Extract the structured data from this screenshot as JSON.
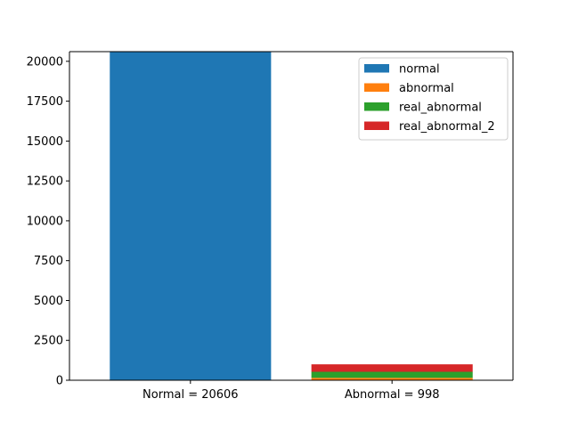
{
  "chart_data": {
    "type": "bar",
    "stacked": true,
    "categories": [
      "Normal = 20606",
      "Abnormal = 998"
    ],
    "series": [
      {
        "name": "normal",
        "values": [
          20606,
          0
        ],
        "color": "#1f77b4"
      },
      {
        "name": "abnormal",
        "values": [
          0,
          150
        ],
        "color": "#ff7f0e"
      },
      {
        "name": "real_abnormal",
        "values": [
          0,
          380
        ],
        "color": "#2ca02c"
      },
      {
        "name": "real_abnormal_2",
        "values": [
          0,
          468
        ],
        "color": "#d62728"
      }
    ],
    "yticks": [
      0,
      2500,
      5000,
      7500,
      10000,
      12500,
      15000,
      17500,
      20000
    ],
    "ylim": [
      0,
      20606
    ],
    "grid": false,
    "legend": "top-right"
  }
}
